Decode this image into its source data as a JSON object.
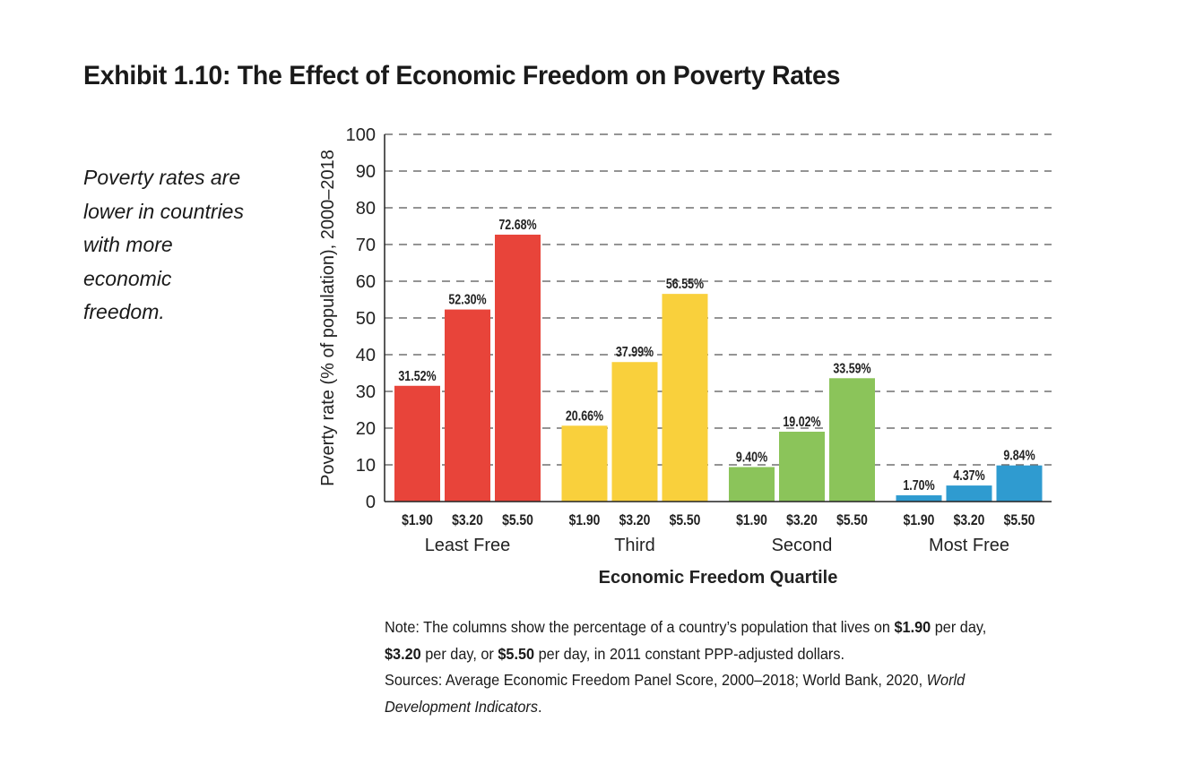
{
  "title": "Exhibit 1.10: The Effect of Economic Freedom on Poverty Rates",
  "subtitle": "Poverty rates are lower in countries with more economic freedom.",
  "chart_data": {
    "type": "bar",
    "title": "Exhibit 1.10: The Effect of Economic Freedom on Poverty Rates",
    "xlabel": "Economic Freedom Quartile",
    "ylabel": "Poverty rate (% of population), 2000–2018",
    "ylim": [
      0,
      100
    ],
    "yticks": [
      0,
      10,
      20,
      30,
      40,
      50,
      60,
      70,
      80,
      90,
      100
    ],
    "grid": "horizontal dashed",
    "legend": "none",
    "sub_categories": [
      "$1.90",
      "$3.20",
      "$5.50"
    ],
    "groups": [
      {
        "name": "Least Free",
        "color": "#E8443A",
        "values": [
          31.52,
          52.3,
          72.68
        ],
        "labels": [
          "31.52%",
          "52.30%",
          "72.68%"
        ]
      },
      {
        "name": "Third",
        "color": "#F9D03C",
        "values": [
          20.66,
          37.99,
          56.55
        ],
        "labels": [
          "20.66%",
          "37.99%",
          "56.55%"
        ]
      },
      {
        "name": "Second",
        "color": "#8BC45A",
        "values": [
          9.4,
          19.02,
          33.59
        ],
        "labels": [
          "9.40%",
          "19.02%",
          "33.59%"
        ]
      },
      {
        "name": "Most Free",
        "color": "#2F9BD0",
        "values": [
          1.7,
          4.37,
          9.84
        ],
        "labels": [
          "1.70%",
          "4.37%",
          "9.84%"
        ]
      }
    ]
  },
  "note": {
    "prefix": "Note: The columns show the percentage of a country’s population that lives on ",
    "b1": "$1.90",
    "mid1": " per day, ",
    "b2": "$3.20",
    "mid2": " per day, or ",
    "b3": "$5.50",
    "suffix": " per day, in 2011 constant PPP-adjusted dollars.",
    "sources": "Sources: Average Economic Freedom Panel Score, 2000–2018; World Bank, 2020, ",
    "sources_italic": "World Development Indicators",
    "sources_end": "."
  }
}
